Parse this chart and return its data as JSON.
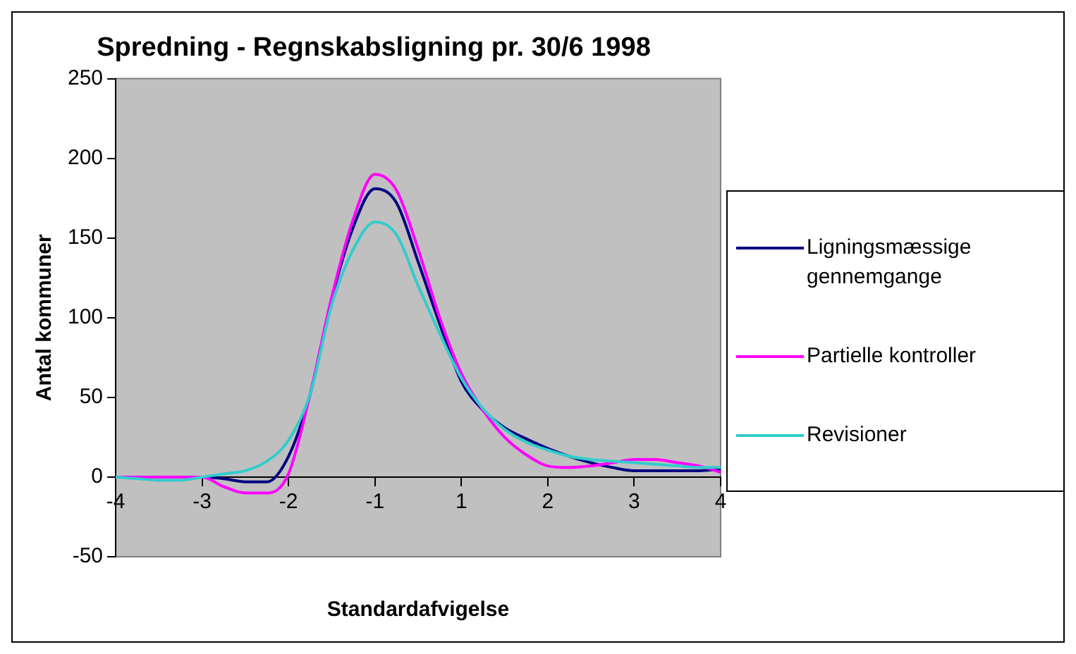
{
  "chart_data": {
    "type": "line",
    "title": "Spredning - Regnskabsligning pr. 30/6 1998",
    "xlabel": "Standardafvigelse",
    "ylabel": "Antal kommuner",
    "categories": [
      "-4",
      null,
      null,
      null,
      "-3",
      null,
      null,
      null,
      "-2",
      null,
      null,
      null,
      "-1",
      null,
      null,
      null,
      "1",
      null,
      null,
      null,
      "2",
      null,
      null,
      null,
      "3",
      null,
      null,
      null,
      "4"
    ],
    "ylim": [
      -50,
      250
    ],
    "yticks": [
      -50,
      0,
      50,
      100,
      150,
      200,
      250
    ],
    "legend": "right",
    "marker": "none",
    "series": [
      {
        "name": "Ligningsmæssige gennemgange",
        "color": "#000080",
        "values": [
          null,
          null,
          null,
          null,
          0,
          -1,
          -3,
          -3,
          13,
          52,
          112,
          157,
          181,
          172,
          135,
          96,
          60,
          42,
          31,
          24,
          18,
          13,
          9,
          6,
          4,
          4,
          4,
          4,
          5
        ]
      },
      {
        "name": "Partielle kontroller",
        "color": "#ff00ff",
        "values": [
          0,
          0,
          0,
          0,
          0,
          -6,
          -10,
          -10,
          2,
          52,
          113,
          162,
          190,
          180,
          143,
          100,
          65,
          42,
          25,
          14,
          7,
          6,
          7,
          9,
          11,
          11,
          9,
          7,
          3
        ]
      },
      {
        "name": "Revisioner",
        "color": "#33cccc",
        "values": [
          0,
          -1,
          -2,
          -2,
          0,
          2,
          4,
          10,
          23,
          52,
          108,
          143,
          160,
          152,
          120,
          90,
          62,
          43,
          30,
          22,
          17,
          13,
          11,
          10,
          9,
          8,
          7,
          6,
          6
        ]
      }
    ]
  }
}
